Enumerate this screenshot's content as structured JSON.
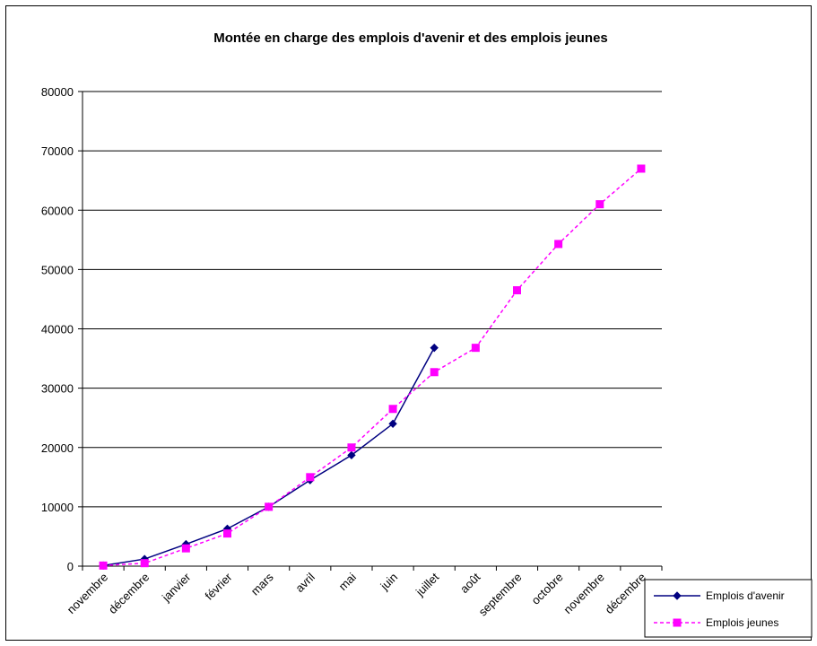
{
  "chart_data": {
    "type": "line",
    "title": "Montée en charge des emplois d'avenir et des emplois jeunes",
    "xlabel": "",
    "ylabel": "",
    "categories": [
      "novembre",
      "décembre",
      "janvier",
      "février",
      "mars",
      "avril",
      "mai",
      "juin",
      "juillet",
      "août",
      "septembre",
      "octobre",
      "novembre",
      "décembre"
    ],
    "ylim": [
      0,
      80000
    ],
    "yticks": [
      0,
      10000,
      20000,
      30000,
      40000,
      50000,
      60000,
      70000,
      80000
    ],
    "grid": true,
    "legend_position": "bottom-right",
    "series": [
      {
        "name": "Emplois d'avenir",
        "color": "#000080",
        "marker": "diamond",
        "line_style": "solid",
        "values": [
          100,
          1200,
          3700,
          6300,
          10000,
          14500,
          18700,
          24000,
          36800,
          null,
          null,
          null,
          null,
          null
        ]
      },
      {
        "name": "Emplois jeunes",
        "color": "#FF00FF",
        "marker": "square",
        "line_style": "dashed",
        "values": [
          100,
          500,
          3000,
          5500,
          10000,
          15000,
          20000,
          26500,
          32700,
          36800,
          46500,
          54300,
          61000,
          67000
        ]
      }
    ]
  }
}
